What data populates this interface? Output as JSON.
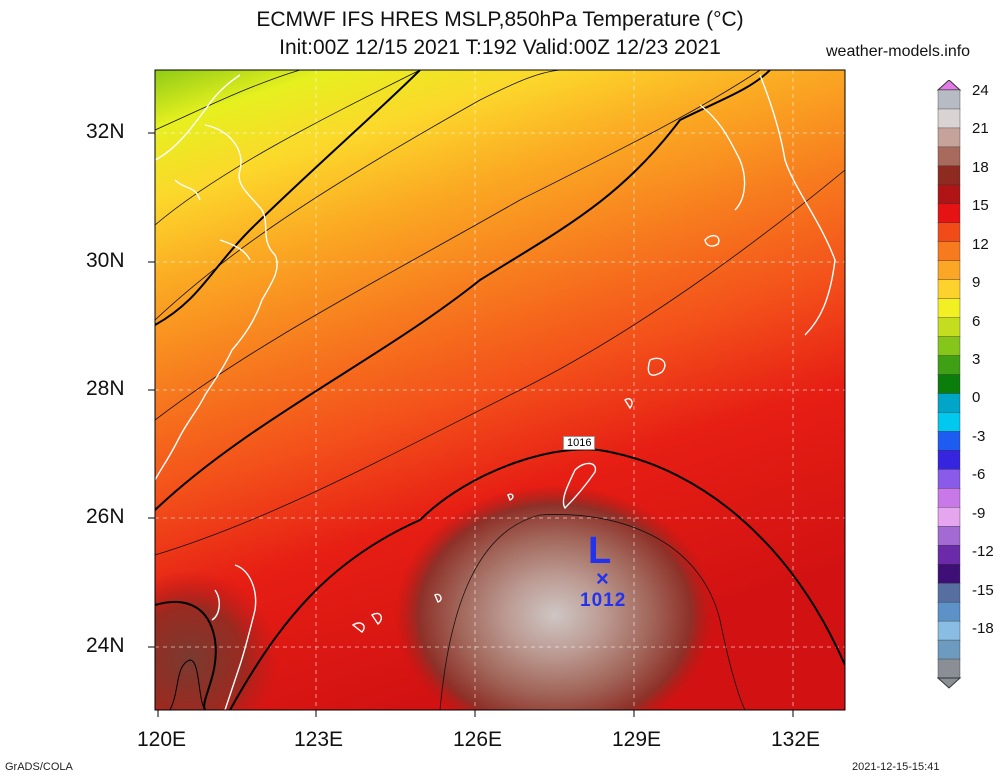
{
  "header": {
    "title_line1": "ECMWF IFS HRES MSLP,850hPa Temperature (°C)",
    "title_line2": "Init:00Z 12/15 2021 T:192 Valid:00Z 12/23 2021",
    "site": "weather-models.info"
  },
  "axes": {
    "lat_labels": [
      "32N",
      "30N",
      "28N",
      "26N",
      "24N"
    ],
    "lon_labels": [
      "120E",
      "123E",
      "126E",
      "129E",
      "132E"
    ]
  },
  "pressure_system": {
    "type_letter": "L",
    "marker": "×",
    "value": "1012"
  },
  "isobar_label": "1016",
  "colorbar": {
    "labels": [
      "24",
      "21",
      "18",
      "15",
      "12",
      "9",
      "6",
      "3",
      "0",
      "-3",
      "-6",
      "-9",
      "-12",
      "-15",
      "-18"
    ],
    "colors": [
      "#b7bcc4",
      "#d9d3d3",
      "#c6a39a",
      "#a76a5c",
      "#8e2a20",
      "#b01414",
      "#e51313",
      "#f24b1a",
      "#f77a1e",
      "#fba624",
      "#fdd22d",
      "#f2f022",
      "#c4de1f",
      "#86c51a",
      "#3fa016",
      "#0b7d0b",
      "#00a5c8",
      "#00c8ee",
      "#1e5bf0",
      "#3524e0",
      "#8a5be8",
      "#c878e8",
      "#e6a6ef",
      "#a46ad4",
      "#6b2aa8",
      "#3e0f76",
      "#566fa0",
      "#5d92c8",
      "#89bde3",
      "#6d9abf",
      "#8a8f96"
    ]
  },
  "footer": {
    "left": "GrADS/COLA",
    "right": "2021-12-15-15:41"
  }
}
